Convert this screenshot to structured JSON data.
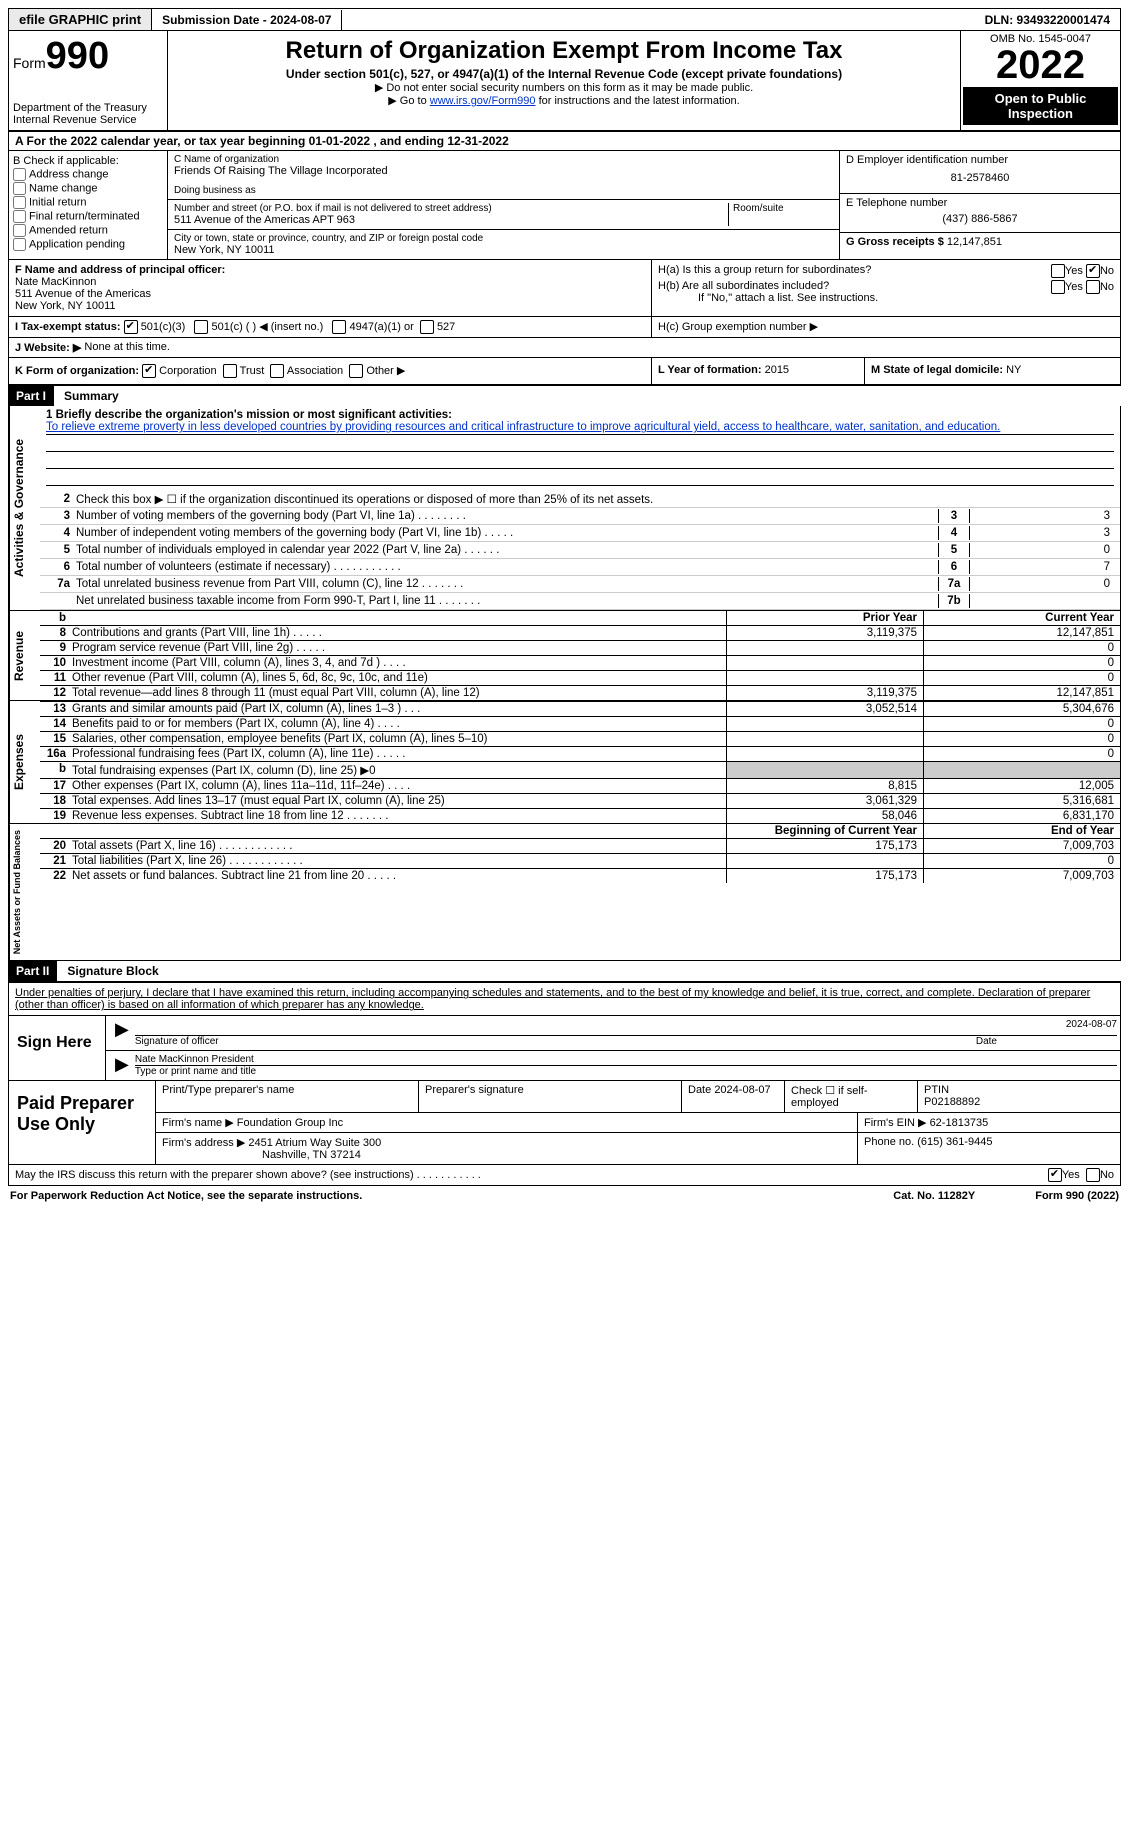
{
  "top": {
    "efile": "efile GRAPHIC print",
    "submission": "Submission Date - 2024-08-07",
    "dln": "DLN: 93493220001474"
  },
  "header": {
    "form": "Form",
    "form_no": "990",
    "dept": "Department of the Treasury",
    "irs": "Internal Revenue Service",
    "title": "Return of Organization Exempt From Income Tax",
    "subtitle": "Under section 501(c), 527, or 4947(a)(1) of the Internal Revenue Code (except private foundations)",
    "note1": "▶ Do not enter social security numbers on this form as it may be made public.",
    "note2_pre": "▶ Go to ",
    "note2_link": "www.irs.gov/Form990",
    "note2_post": " for instructions and the latest information.",
    "omb": "OMB No. 1545-0047",
    "year": "2022",
    "otp": "Open to Public Inspection"
  },
  "A": {
    "text": "A  For the 2022 calendar year, or tax year beginning 01-01-2022    , and ending 12-31-2022"
  },
  "B": {
    "label": "B Check if applicable:",
    "opts": [
      "Address change",
      "Name change",
      "Initial return",
      "Final return/terminated",
      "Amended return",
      "Application pending"
    ]
  },
  "C": {
    "name_label": "C Name of organization",
    "name": "Friends Of Raising The Village Incorporated",
    "dba_label": "Doing business as",
    "addr_label": "Number and street (or P.O. box if mail is not delivered to street address)",
    "room_label": "Room/suite",
    "addr": "511 Avenue of the Americas APT 963",
    "city_label": "City or town, state or province, country, and ZIP or foreign postal code",
    "city": "New York, NY  10011"
  },
  "D": {
    "label": "D Employer identification number",
    "value": "81-2578460"
  },
  "E": {
    "label": "E Telephone number",
    "value": "(437) 886-5867"
  },
  "G": {
    "label": "G Gross receipts $",
    "value": "12,147,851"
  },
  "F": {
    "label": "F  Name and address of principal officer:",
    "name": "Nate MacKinnon",
    "addr1": "511 Avenue of the Americas",
    "addr2": "New York, NY  10011"
  },
  "H": {
    "a": "H(a)  Is this a group return for subordinates?",
    "b": "H(b)  Are all subordinates included?",
    "bnote": "If \"No,\" attach a list. See instructions.",
    "c": "H(c)  Group exemption number ▶"
  },
  "I": {
    "label": "I  Tax-exempt status:",
    "o1": "501(c)(3)",
    "o2": "501(c) (  ) ◀ (insert no.)",
    "o3": "4947(a)(1) or",
    "o4": "527"
  },
  "J": {
    "label": "J  Website: ▶",
    "value": "None at this time."
  },
  "K": {
    "label": "K Form of organization:",
    "o1": "Corporation",
    "o2": "Trust",
    "o3": "Association",
    "o4": "Other ▶"
  },
  "L": {
    "label": "L Year of formation:",
    "value": "2015"
  },
  "M": {
    "label": "M State of legal domicile:",
    "value": "NY"
  },
  "part1": {
    "hdr": "Part I",
    "title": "Summary",
    "mission_label": "1   Briefly describe the organization's mission or most significant activities:",
    "mission": "To relieve extreme proverty in less developed countries by providing resources and critical infrastructure to improve agricultural yield, access to healthcare, water, sanitation, and education.",
    "line2": "Check this box ▶ ☐  if the organization discontinued its operations or disposed of more than 25% of its net assets.",
    "side_ag": "Activities & Governance",
    "side_rev": "Revenue",
    "side_exp": "Expenses",
    "side_na": "Net Assets or Fund Balances",
    "lines_ag": [
      {
        "n": "3",
        "d": "Number of voting members of the governing body (Part VI, line 1a)   .    .    .    .    .    .    .    .",
        "bn": "3",
        "v": "3"
      },
      {
        "n": "4",
        "d": "Number of independent voting members of the governing body (Part VI, line 1b)   .    .    .    .    .",
        "bn": "4",
        "v": "3"
      },
      {
        "n": "5",
        "d": "Total number of individuals employed in calendar year 2022 (Part V, line 2a)   .    .    .    .    .    .",
        "bn": "5",
        "v": "0"
      },
      {
        "n": "6",
        "d": "Total number of volunteers (estimate if necessary)    .    .    .    .    .    .    .    .    .    .    .",
        "bn": "6",
        "v": "7"
      },
      {
        "n": "7a",
        "d": "Total unrelated business revenue from Part VIII, column (C), line 12    .    .    .    .    .    .    .",
        "bn": "7a",
        "v": "0"
      },
      {
        "n": "",
        "d": "Net unrelated business taxable income from Form 990-T, Part I, line 11   .    .    .    .    .    .    .",
        "bn": "7b",
        "v": ""
      }
    ],
    "col_hdr": {
      "b": "b",
      "py": "Prior Year",
      "cy": "Current Year"
    },
    "lines_rev": [
      {
        "n": "8",
        "d": "Contributions and grants (Part VIII, line 1h)   .    .    .    .    .",
        "py": "3,119,375",
        "cy": "12,147,851"
      },
      {
        "n": "9",
        "d": "Program service revenue (Part VIII, line 2g)   .    .    .    .    .",
        "py": "",
        "cy": "0"
      },
      {
        "n": "10",
        "d": "Investment income (Part VIII, column (A), lines 3, 4, and 7d )   .    .    .    .",
        "py": "",
        "cy": "0"
      },
      {
        "n": "11",
        "d": "Other revenue (Part VIII, column (A), lines 5, 6d, 8c, 9c, 10c, and 11e)",
        "py": "",
        "cy": "0"
      },
      {
        "n": "12",
        "d": "Total revenue—add lines 8 through 11 (must equal Part VIII, column (A), line 12)",
        "py": "3,119,375",
        "cy": "12,147,851"
      }
    ],
    "lines_exp": [
      {
        "n": "13",
        "d": "Grants and similar amounts paid (Part IX, column (A), lines 1–3 )   .    .    .",
        "py": "3,052,514",
        "cy": "5,304,676"
      },
      {
        "n": "14",
        "d": "Benefits paid to or for members (Part IX, column (A), line 4)   .    .    .    .",
        "py": "",
        "cy": "0"
      },
      {
        "n": "15",
        "d": "Salaries, other compensation, employee benefits (Part IX, column (A), lines 5–10)",
        "py": "",
        "cy": "0"
      },
      {
        "n": "16a",
        "d": "Professional fundraising fees (Part IX, column (A), line 11e)   .    .    .    .    .",
        "py": "",
        "cy": "0"
      },
      {
        "n": "b",
        "d": "Total fundraising expenses (Part IX, column (D), line 25) ▶0",
        "py": "GREY",
        "cy": "GREY"
      },
      {
        "n": "17",
        "d": "Other expenses (Part IX, column (A), lines 11a–11d, 11f–24e)   .    .    .    .",
        "py": "8,815",
        "cy": "12,005"
      },
      {
        "n": "18",
        "d": "Total expenses. Add lines 13–17 (must equal Part IX, column (A), line 25)",
        "py": "3,061,329",
        "cy": "5,316,681"
      },
      {
        "n": "19",
        "d": "Revenue less expenses. Subtract line 18 from line 12   .    .    .    .    .    .    .",
        "py": "58,046",
        "cy": "6,831,170"
      }
    ],
    "na_hdr": {
      "py": "Beginning of Current Year",
      "cy": "End of Year"
    },
    "lines_na": [
      {
        "n": "20",
        "d": "Total assets (Part X, line 16)   .    .    .    .    .    .    .    .    .    .    .    .",
        "py": "175,173",
        "cy": "7,009,703"
      },
      {
        "n": "21",
        "d": "Total liabilities (Part X, line 26)   .    .    .    .    .    .    .    .    .    .    .    .",
        "py": "",
        "cy": "0"
      },
      {
        "n": "22",
        "d": "Net assets or fund balances. Subtract line 21 from line 20   .    .    .    .    .",
        "py": "175,173",
        "cy": "7,009,703"
      }
    ]
  },
  "part2": {
    "hdr": "Part II",
    "title": "Signature Block",
    "penalty": "Under penalties of perjury, I declare that I have examined this return, including accompanying schedules and statements, and to the best of my knowledge and belief, it is true, correct, and complete. Declaration of preparer (other than officer) is based on all information of which preparer has any knowledge.",
    "sign_here": "Sign Here",
    "sig_officer": "Signature of officer",
    "date": "Date",
    "sig_date": "2024-08-07",
    "officer_name": "Nate MacKinnon  President",
    "type_name": "Type or print name and title",
    "paid": "Paid Preparer Use Only",
    "p_name_label": "Print/Type preparer's name",
    "p_sig_label": "Preparer's signature",
    "p_date_label": "Date",
    "p_date": "2024-08-07",
    "p_check": "Check ☐ if self-employed",
    "ptin_label": "PTIN",
    "ptin": "P02188892",
    "firm_name_label": "Firm's name    ▶",
    "firm_name": "Foundation Group Inc",
    "firm_ein_label": "Firm's EIN ▶",
    "firm_ein": "62-1813735",
    "firm_addr_label": "Firm's address ▶",
    "firm_addr1": "2451 Atrium Way Suite 300",
    "firm_addr2": "Nashville, TN  37214",
    "phone_label": "Phone no.",
    "phone": "(615) 361-9445",
    "discuss": "May the IRS discuss this return with the preparer shown above? (see instructions)    .    .    .    .    .    .    .    .    .    .    .",
    "yes": "Yes",
    "no": "No"
  },
  "footer": {
    "pra": "For Paperwork Reduction Act Notice, see the separate instructions.",
    "cat": "Cat. No. 11282Y",
    "form": "Form 990 (2022)"
  }
}
